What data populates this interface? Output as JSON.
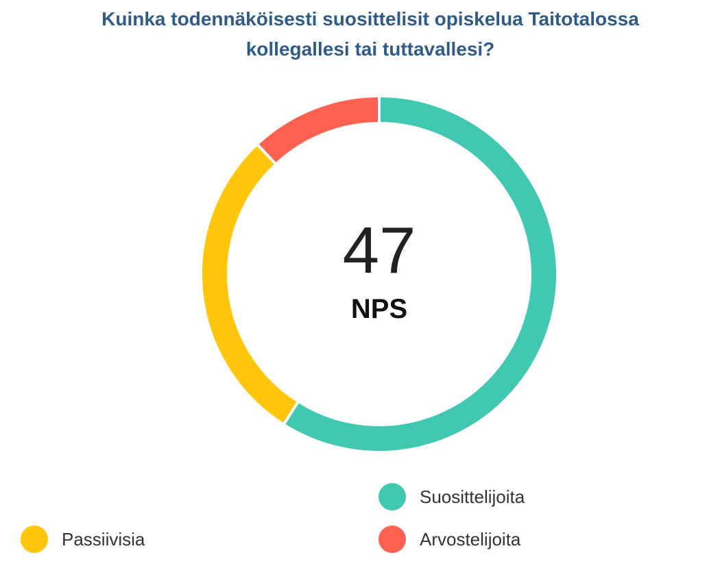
{
  "title": {
    "line1": "Kuinka todennäköisesti suosittelisit opiskelua Taitotalossa",
    "line2": "kollegallesi tai tuttavallesi?"
  },
  "nps": {
    "value": "47",
    "label": "NPS"
  },
  "legend": {
    "promoters": "Suosittelijoita",
    "passives": "Passiivisia",
    "detractors": "Arvostelijoita"
  },
  "colors": {
    "promoters": "#40c9b0",
    "passives": "#ffc60b",
    "detractors": "#ff6150",
    "title": "#2f5b86"
  },
  "chart_data": {
    "type": "pie",
    "variant": "donut",
    "title": "Kuinka todennäköisesti suosittelisit opiskelua Taitotalossa kollegallesi tai tuttavallesi?",
    "categories": [
      "Suosittelijoita",
      "Passiivisia",
      "Arvostelijoita"
    ],
    "values": [
      59,
      29,
      12
    ],
    "unit": "%",
    "center_value": 47,
    "center_label": "NPS",
    "legend_position": "bottom"
  }
}
